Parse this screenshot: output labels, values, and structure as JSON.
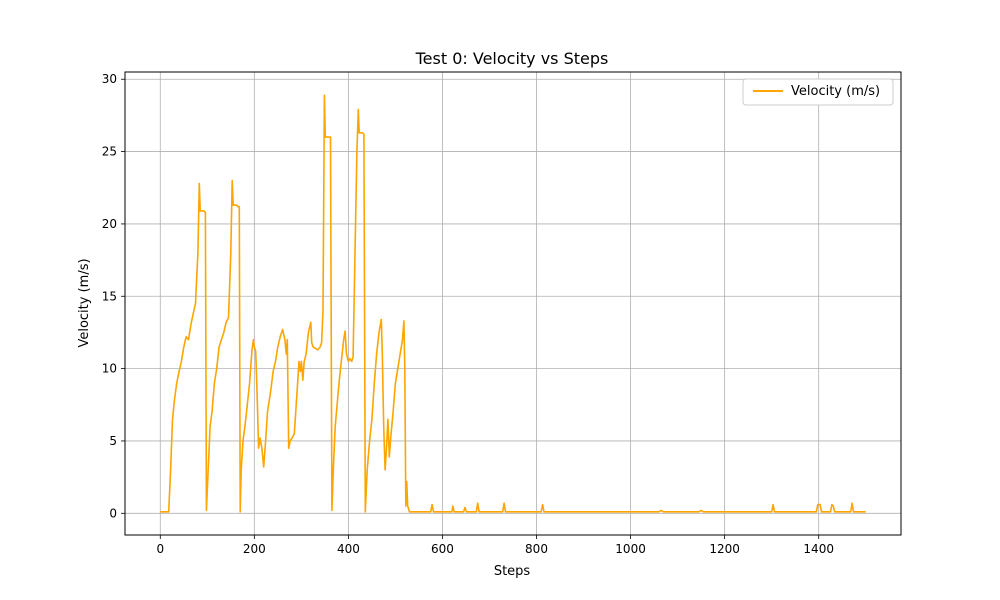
{
  "chart_data": {
    "type": "line",
    "title": "Test 0: Velocity vs Steps",
    "xlabel": "Steps",
    "ylabel": "Velocity (m/s)",
    "xlim": [
      -75,
      1575
    ],
    "ylim": [
      -1.5,
      30.5
    ],
    "xticks": [
      0,
      200,
      400,
      600,
      800,
      1000,
      1200,
      1400
    ],
    "yticks": [
      0,
      5,
      10,
      15,
      20,
      25,
      30
    ],
    "grid": true,
    "legend_position": "upper right",
    "series": [
      {
        "name": "Velocity (m/s)",
        "color": "#ffa500",
        "points": [
          [
            0,
            0.1
          ],
          [
            18,
            0.1
          ],
          [
            22,
            3
          ],
          [
            26,
            6.5
          ],
          [
            30,
            7.8
          ],
          [
            35,
            9
          ],
          [
            40,
            9.8
          ],
          [
            45,
            10.5
          ],
          [
            50,
            11.5
          ],
          [
            55,
            12.2
          ],
          [
            60,
            12
          ],
          [
            65,
            13
          ],
          [
            70,
            13.8
          ],
          [
            75,
            14.5
          ],
          [
            80,
            18
          ],
          [
            83,
            22.8
          ],
          [
            85,
            20.9
          ],
          [
            88,
            20.9
          ],
          [
            93,
            20.9
          ],
          [
            96,
            20.8
          ],
          [
            98,
            0.2
          ],
          [
            102,
            3
          ],
          [
            106,
            6
          ],
          [
            110,
            7
          ],
          [
            115,
            9
          ],
          [
            120,
            10
          ],
          [
            125,
            11.5
          ],
          [
            130,
            12
          ],
          [
            135,
            12.5
          ],
          [
            140,
            13.2
          ],
          [
            145,
            13.5
          ],
          [
            150,
            18
          ],
          [
            153,
            23
          ],
          [
            155,
            21.3
          ],
          [
            158,
            21.3
          ],
          [
            162,
            21.3
          ],
          [
            165,
            21.2
          ],
          [
            168,
            21.2
          ],
          [
            170,
            0.1
          ],
          [
            172,
            3
          ],
          [
            176,
            5
          ],
          [
            180,
            6
          ],
          [
            185,
            7.5
          ],
          [
            190,
            9
          ],
          [
            195,
            11.3
          ],
          [
            198,
            12
          ],
          [
            200,
            11.5
          ],
          [
            203,
            11.2
          ],
          [
            206,
            8
          ],
          [
            209,
            4.5
          ],
          [
            212,
            5.2
          ],
          [
            216,
            4.5
          ],
          [
            220,
            3.2
          ],
          [
            224,
            5
          ],
          [
            228,
            7
          ],
          [
            235,
            8.5
          ],
          [
            240,
            9.8
          ],
          [
            245,
            10.5
          ],
          [
            250,
            11.5
          ],
          [
            255,
            12.2
          ],
          [
            260,
            12.7
          ],
          [
            265,
            12
          ],
          [
            268,
            11
          ],
          [
            270,
            12
          ],
          [
            273,
            4.5
          ],
          [
            276,
            5
          ],
          [
            280,
            5.2
          ],
          [
            285,
            5.5
          ],
          [
            290,
            8
          ],
          [
            295,
            10.5
          ],
          [
            298,
            9.8
          ],
          [
            300,
            10.5
          ],
          [
            303,
            9.2
          ],
          [
            306,
            10.5
          ],
          [
            310,
            11
          ],
          [
            315,
            12.5
          ],
          [
            320,
            13.2
          ],
          [
            322,
            11.8
          ],
          [
            325,
            11.5
          ],
          [
            330,
            11.4
          ],
          [
            335,
            11.3
          ],
          [
            340,
            11.5
          ],
          [
            343,
            11.8
          ],
          [
            346,
            14
          ],
          [
            349,
            28.9
          ],
          [
            351,
            26
          ],
          [
            354,
            26
          ],
          [
            358,
            26
          ],
          [
            362,
            26
          ],
          [
            365,
            0.2
          ],
          [
            368,
            3
          ],
          [
            372,
            6
          ],
          [
            376,
            7.5
          ],
          [
            380,
            9
          ],
          [
            385,
            10.5
          ],
          [
            390,
            12
          ],
          [
            393,
            12.6
          ],
          [
            396,
            11
          ],
          [
            400,
            10.5
          ],
          [
            403,
            10.7
          ],
          [
            407,
            10.5
          ],
          [
            410,
            10.8
          ],
          [
            414,
            18
          ],
          [
            418,
            25
          ],
          [
            421,
            27.9
          ],
          [
            423,
            26.3
          ],
          [
            426,
            26.3
          ],
          [
            430,
            26.3
          ],
          [
            433,
            26.2
          ],
          [
            436,
            0.1
          ],
          [
            440,
            3
          ],
          [
            445,
            5
          ],
          [
            450,
            6.5
          ],
          [
            455,
            9
          ],
          [
            460,
            11
          ],
          [
            465,
            12.5
          ],
          [
            470,
            13.4
          ],
          [
            472,
            11
          ],
          [
            475,
            6
          ],
          [
            478,
            3
          ],
          [
            481,
            4.5
          ],
          [
            484,
            6.5
          ],
          [
            487,
            3.9
          ],
          [
            490,
            5.2
          ],
          [
            495,
            7
          ],
          [
            500,
            9
          ],
          [
            505,
            10
          ],
          [
            510,
            11
          ],
          [
            515,
            12
          ],
          [
            518,
            13.3
          ],
          [
            520,
            10
          ],
          [
            522,
            0.5
          ],
          [
            524,
            2.2
          ],
          [
            526,
            0.5
          ],
          [
            530,
            0.1
          ],
          [
            560,
            0.1
          ],
          [
            575,
            0.1
          ],
          [
            578,
            0.6
          ],
          [
            581,
            0.1
          ],
          [
            620,
            0.1
          ],
          [
            622,
            0.5
          ],
          [
            625,
            0.1
          ],
          [
            645,
            0.1
          ],
          [
            648,
            0.4
          ],
          [
            651,
            0.1
          ],
          [
            672,
            0.1
          ],
          [
            675,
            0.7
          ],
          [
            678,
            0.1
          ],
          [
            728,
            0.1
          ],
          [
            731,
            0.7
          ],
          [
            734,
            0.1
          ],
          [
            810,
            0.1
          ],
          [
            813,
            0.6
          ],
          [
            816,
            0.1
          ],
          [
            920,
            0.1
          ],
          [
            1060,
            0.1
          ],
          [
            1065,
            0.2
          ],
          [
            1070,
            0.1
          ],
          [
            1145,
            0.1
          ],
          [
            1150,
            0.2
          ],
          [
            1155,
            0.1
          ],
          [
            1300,
            0.1
          ],
          [
            1303,
            0.6
          ],
          [
            1306,
            0.1
          ],
          [
            1395,
            0.1
          ],
          [
            1398,
            0.6
          ],
          [
            1403,
            0.6
          ],
          [
            1406,
            0.1
          ],
          [
            1425,
            0.1
          ],
          [
            1428,
            0.6
          ],
          [
            1431,
            0.5
          ],
          [
            1434,
            0.1
          ],
          [
            1468,
            0.1
          ],
          [
            1471,
            0.7
          ],
          [
            1474,
            0.1
          ],
          [
            1500,
            0.1
          ]
        ]
      }
    ]
  }
}
